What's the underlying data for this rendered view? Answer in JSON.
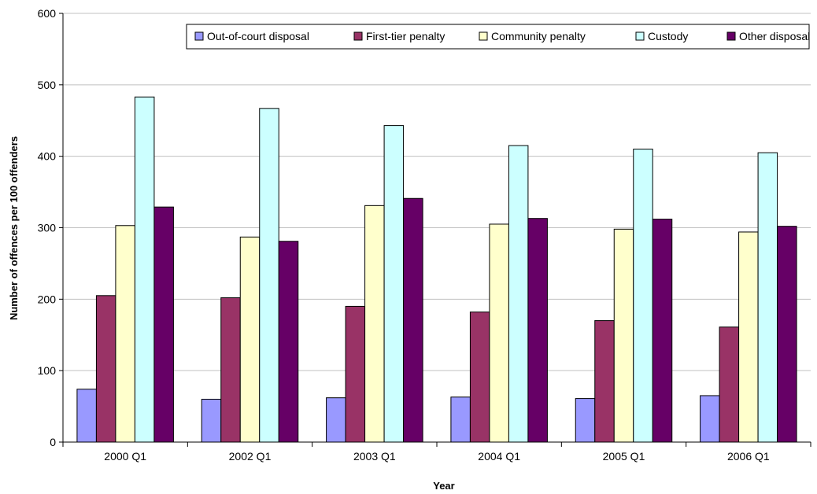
{
  "chart_data": {
    "type": "bar",
    "title": "",
    "xlabel": "Year",
    "ylabel": "Number of offences per 100 offenders",
    "ylim": [
      0,
      600
    ],
    "yticks": [
      0,
      100,
      200,
      300,
      400,
      500,
      600
    ],
    "grid": true,
    "legend_position": "top-right",
    "categories": [
      "2000 Q1",
      "2002 Q1",
      "2003 Q1",
      "2004 Q1",
      "2005 Q1",
      "2006 Q1"
    ],
    "series": [
      {
        "name": "Out-of-court disposal",
        "color": "#9999FF",
        "values": [
          74,
          60,
          62,
          63,
          61,
          65
        ]
      },
      {
        "name": "First-tier penalty",
        "color": "#993366",
        "values": [
          205,
          202,
          190,
          182,
          170,
          161
        ]
      },
      {
        "name": "Community penalty",
        "color": "#FFFFCC",
        "values": [
          303,
          287,
          331,
          305,
          298,
          294
        ]
      },
      {
        "name": "Custody",
        "color": "#CCFFFF",
        "values": [
          483,
          467,
          443,
          415,
          410,
          405
        ]
      },
      {
        "name": "Other disposal",
        "color": "#660066",
        "values": [
          329,
          281,
          341,
          313,
          312,
          302
        ]
      }
    ]
  }
}
